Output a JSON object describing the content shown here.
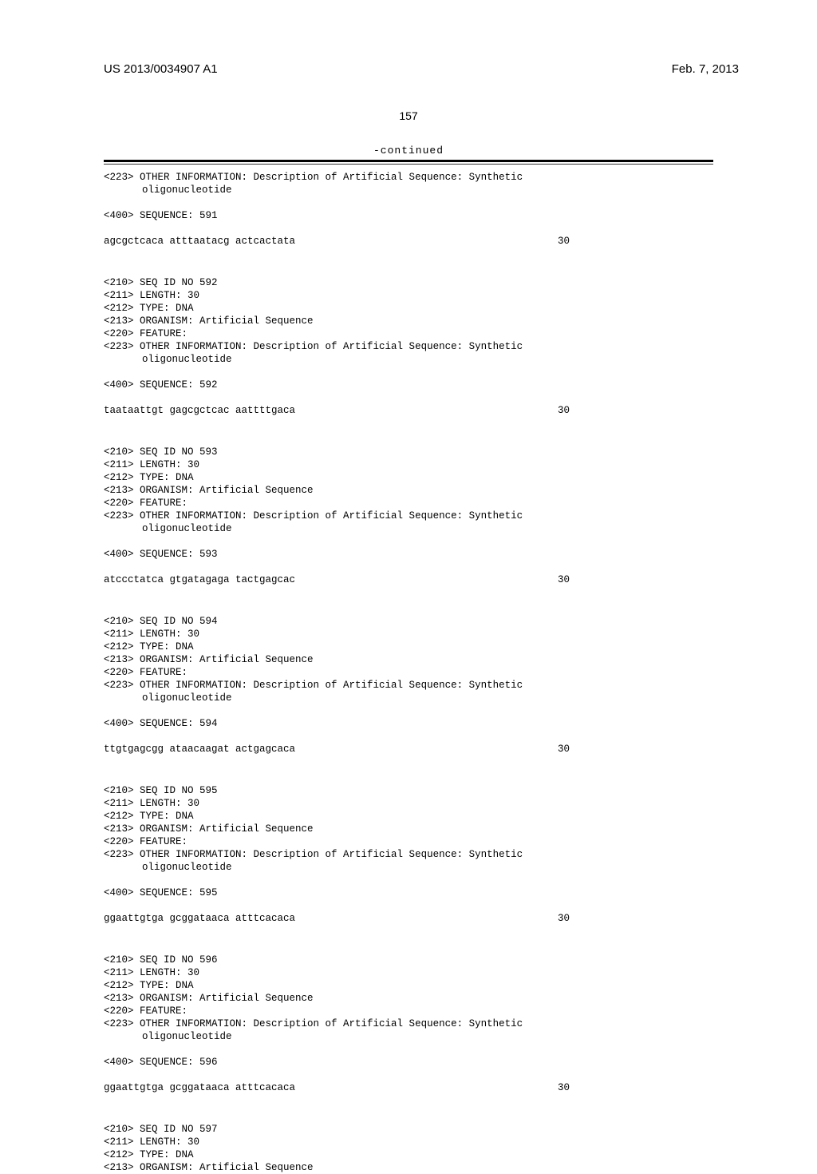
{
  "header": {
    "pub_number": "US 2013/0034907 A1",
    "pub_date": "Feb. 7, 2013"
  },
  "page_number": "157",
  "continued_label": "-continued",
  "entries": [
    {
      "pre_lines": [
        "<223> OTHER INFORMATION: Description of Artificial Sequence: Synthetic",
        "      oligonucleotide"
      ],
      "seq_marker": "<400> SEQUENCE: 591",
      "sequence": "agcgctcaca atttaatacg actcactata",
      "length_num": "30"
    },
    {
      "pre_lines": [
        "<210> SEQ ID NO 592",
        "<211> LENGTH: 30",
        "<212> TYPE: DNA",
        "<213> ORGANISM: Artificial Sequence",
        "<220> FEATURE:",
        "<223> OTHER INFORMATION: Description of Artificial Sequence: Synthetic",
        "      oligonucleotide"
      ],
      "seq_marker": "<400> SEQUENCE: 592",
      "sequence": "taataattgt gagcgctcac aattttgaca",
      "length_num": "30"
    },
    {
      "pre_lines": [
        "<210> SEQ ID NO 593",
        "<211> LENGTH: 30",
        "<212> TYPE: DNA",
        "<213> ORGANISM: Artificial Sequence",
        "<220> FEATURE:",
        "<223> OTHER INFORMATION: Description of Artificial Sequence: Synthetic",
        "      oligonucleotide"
      ],
      "seq_marker": "<400> SEQUENCE: 593",
      "sequence": "atccctatca gtgatagaga tactgagcac",
      "length_num": "30"
    },
    {
      "pre_lines": [
        "<210> SEQ ID NO 594",
        "<211> LENGTH: 30",
        "<212> TYPE: DNA",
        "<213> ORGANISM: Artificial Sequence",
        "<220> FEATURE:",
        "<223> OTHER INFORMATION: Description of Artificial Sequence: Synthetic",
        "      oligonucleotide"
      ],
      "seq_marker": "<400> SEQUENCE: 594",
      "sequence": "ttgtgagcgg ataacaagat actgagcaca",
      "length_num": "30"
    },
    {
      "pre_lines": [
        "<210> SEQ ID NO 595",
        "<211> LENGTH: 30",
        "<212> TYPE: DNA",
        "<213> ORGANISM: Artificial Sequence",
        "<220> FEATURE:",
        "<223> OTHER INFORMATION: Description of Artificial Sequence: Synthetic",
        "      oligonucleotide"
      ],
      "seq_marker": "<400> SEQUENCE: 595",
      "sequence": "ggaattgtga gcggataaca atttcacaca",
      "length_num": "30"
    },
    {
      "pre_lines": [
        "<210> SEQ ID NO 596",
        "<211> LENGTH: 30",
        "<212> TYPE: DNA",
        "<213> ORGANISM: Artificial Sequence",
        "<220> FEATURE:",
        "<223> OTHER INFORMATION: Description of Artificial Sequence: Synthetic",
        "      oligonucleotide"
      ],
      "seq_marker": "<400> SEQUENCE: 596",
      "sequence": "ggaattgtga gcggataaca atttcacaca",
      "length_num": "30"
    },
    {
      "pre_lines": [
        "<210> SEQ ID NO 597",
        "<211> LENGTH: 30",
        "<212> TYPE: DNA",
        "<213> ORGANISM: Artificial Sequence"
      ],
      "seq_marker": "",
      "sequence": "",
      "length_num": ""
    }
  ]
}
